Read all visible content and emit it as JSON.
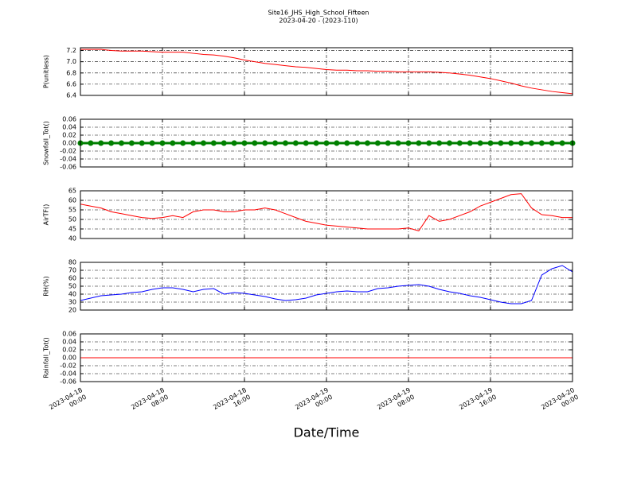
{
  "chart_data": [
    {
      "type": "line",
      "title": "Site16_JHS_High_School_Fifteen",
      "subtitle": "2023-04-20 - (2023-110)",
      "ylabel": "P(unitless)",
      "x": [
        "2023-04-18 00:00",
        "2023-04-18 01:00",
        "2023-04-18 02:00",
        "2023-04-18 03:00",
        "2023-04-18 04:00",
        "2023-04-18 05:00",
        "2023-04-18 06:00",
        "2023-04-18 07:00",
        "2023-04-18 08:00",
        "2023-04-18 09:00",
        "2023-04-18 10:00",
        "2023-04-18 11:00",
        "2023-04-18 12:00",
        "2023-04-18 13:00",
        "2023-04-18 14:00",
        "2023-04-18 15:00",
        "2023-04-18 16:00",
        "2023-04-18 17:00",
        "2023-04-18 18:00",
        "2023-04-18 19:00",
        "2023-04-18 20:00",
        "2023-04-18 21:00",
        "2023-04-18 22:00",
        "2023-04-18 23:00",
        "2023-04-19 00:00",
        "2023-04-19 01:00",
        "2023-04-19 02:00",
        "2023-04-19 03:00",
        "2023-04-19 04:00",
        "2023-04-19 05:00",
        "2023-04-19 06:00",
        "2023-04-19 07:00",
        "2023-04-19 08:00",
        "2023-04-19 09:00",
        "2023-04-19 10:00",
        "2023-04-19 11:00",
        "2023-04-19 12:00",
        "2023-04-19 13:00",
        "2023-04-19 14:00",
        "2023-04-19 15:00",
        "2023-04-19 16:00",
        "2023-04-19 17:00",
        "2023-04-19 18:00",
        "2023-04-19 19:00",
        "2023-04-19 20:00",
        "2023-04-19 21:00",
        "2023-04-19 22:00",
        "2023-04-19 23:00",
        "2023-04-20 00:00"
      ],
      "series": [
        {
          "color": "#ff0000",
          "values": [
            7.22,
            7.22,
            7.22,
            7.2,
            7.19,
            7.19,
            7.19,
            7.18,
            7.17,
            7.17,
            7.17,
            7.15,
            7.13,
            7.12,
            7.1,
            7.07,
            7.03,
            7.0,
            6.97,
            6.95,
            6.93,
            6.91,
            6.9,
            6.88,
            6.86,
            6.85,
            6.85,
            6.84,
            6.84,
            6.83,
            6.83,
            6.82,
            6.82,
            6.82,
            6.82,
            6.81,
            6.8,
            6.78,
            6.76,
            6.73,
            6.7,
            6.66,
            6.62,
            6.57,
            6.53,
            6.5,
            6.47,
            6.45,
            6.43
          ]
        }
      ],
      "xlim": [
        "2023-04-18 00:00",
        "2023-04-20 00:00"
      ],
      "xticks": [
        "2023-04-18 00:00",
        "2023-04-18 08:00",
        "2023-04-18 16:00",
        "2023-04-19 00:00",
        "2023-04-19 08:00",
        "2023-04-19 16:00",
        "2023-04-20 00:00"
      ],
      "ylim": [
        6.4,
        7.25
      ],
      "yticks": [
        {
          "value": 6.4,
          "label": "6.4"
        },
        6.6,
        6.8,
        {
          "value": 7,
          "label": "7.0"
        },
        7.2
      ],
      "grid": true
    },
    {
      "type": "line",
      "ylabel": "Snowfall_Tot()",
      "x": [
        "2023-04-18 00:00",
        "2023-04-18 01:00",
        "2023-04-18 02:00",
        "2023-04-18 03:00",
        "2023-04-18 04:00",
        "2023-04-18 05:00",
        "2023-04-18 06:00",
        "2023-04-18 07:00",
        "2023-04-18 08:00",
        "2023-04-18 09:00",
        "2023-04-18 10:00",
        "2023-04-18 11:00",
        "2023-04-18 12:00",
        "2023-04-18 13:00",
        "2023-04-18 14:00",
        "2023-04-18 15:00",
        "2023-04-18 16:00",
        "2023-04-18 17:00",
        "2023-04-18 18:00",
        "2023-04-18 19:00",
        "2023-04-18 20:00",
        "2023-04-18 21:00",
        "2023-04-18 22:00",
        "2023-04-18 23:00",
        "2023-04-19 00:00",
        "2023-04-19 01:00",
        "2023-04-19 02:00",
        "2023-04-19 03:00",
        "2023-04-19 04:00",
        "2023-04-19 05:00",
        "2023-04-19 06:00",
        "2023-04-19 07:00",
        "2023-04-19 08:00",
        "2023-04-19 09:00",
        "2023-04-19 10:00",
        "2023-04-19 11:00",
        "2023-04-19 12:00",
        "2023-04-19 13:00",
        "2023-04-19 14:00",
        "2023-04-19 15:00",
        "2023-04-19 16:00",
        "2023-04-19 17:00",
        "2023-04-19 18:00",
        "2023-04-19 19:00",
        "2023-04-19 20:00",
        "2023-04-19 21:00",
        "2023-04-19 22:00",
        "2023-04-19 23:00",
        "2023-04-20 00:00"
      ],
      "series": [
        {
          "color": "#008000",
          "marker": true,
          "values": [
            0,
            0,
            0,
            0,
            0,
            0,
            0,
            0,
            0,
            0,
            0,
            0,
            0,
            0,
            0,
            0,
            0,
            0,
            0,
            0,
            0,
            0,
            0,
            0,
            0,
            0,
            0,
            0,
            0,
            0,
            0,
            0,
            0,
            0,
            0,
            0,
            0,
            0,
            0,
            0,
            0,
            0,
            0,
            0,
            0,
            0,
            0,
            0,
            0
          ]
        }
      ],
      "xlim": [
        "2023-04-18 00:00",
        "2023-04-20 00:00"
      ],
      "xticks": [
        "2023-04-18 00:00",
        "2023-04-18 08:00",
        "2023-04-18 16:00",
        "2023-04-19 00:00",
        "2023-04-19 08:00",
        "2023-04-19 16:00",
        "2023-04-20 00:00"
      ],
      "ylim": [
        -0.06,
        0.06
      ],
      "yticks": [
        -0.06,
        -0.04,
        -0.02,
        {
          "value": 0,
          "label": "0.00"
        },
        0.02,
        0.04,
        0.06
      ],
      "grid": true
    },
    {
      "type": "line",
      "ylabel": "AirTF()",
      "x": [
        "2023-04-18 00:00",
        "2023-04-18 01:00",
        "2023-04-18 02:00",
        "2023-04-18 03:00",
        "2023-04-18 04:00",
        "2023-04-18 05:00",
        "2023-04-18 06:00",
        "2023-04-18 07:00",
        "2023-04-18 08:00",
        "2023-04-18 09:00",
        "2023-04-18 10:00",
        "2023-04-18 11:00",
        "2023-04-18 12:00",
        "2023-04-18 13:00",
        "2023-04-18 14:00",
        "2023-04-18 15:00",
        "2023-04-18 16:00",
        "2023-04-18 17:00",
        "2023-04-18 18:00",
        "2023-04-18 19:00",
        "2023-04-18 20:00",
        "2023-04-18 21:00",
        "2023-04-18 22:00",
        "2023-04-18 23:00",
        "2023-04-19 00:00",
        "2023-04-19 01:00",
        "2023-04-19 02:00",
        "2023-04-19 03:00",
        "2023-04-19 04:00",
        "2023-04-19 05:00",
        "2023-04-19 06:00",
        "2023-04-19 07:00",
        "2023-04-19 08:00",
        "2023-04-19 09:00",
        "2023-04-19 10:00",
        "2023-04-19 11:00",
        "2023-04-19 12:00",
        "2023-04-19 13:00",
        "2023-04-19 14:00",
        "2023-04-19 15:00",
        "2023-04-19 16:00",
        "2023-04-19 17:00",
        "2023-04-19 18:00",
        "2023-04-19 19:00",
        "2023-04-19 20:00",
        "2023-04-19 21:00",
        "2023-04-19 22:00",
        "2023-04-19 23:00",
        "2023-04-20 00:00"
      ],
      "series": [
        {
          "color": "#ff0000",
          "values": [
            58,
            57,
            56,
            54,
            53,
            52,
            51,
            50.5,
            51,
            52,
            51,
            54,
            55,
            55,
            54,
            54,
            55,
            55,
            56,
            55,
            53,
            51,
            49,
            48,
            47,
            46.5,
            46,
            45.5,
            45,
            45,
            45,
            45,
            45.5,
            44,
            52,
            49,
            50,
            52,
            54,
            57,
            59,
            61,
            63,
            63.5,
            56,
            52.5,
            52,
            51,
            51
          ]
        }
      ],
      "xlim": [
        "2023-04-18 00:00",
        "2023-04-20 00:00"
      ],
      "xticks": [
        "2023-04-18 00:00",
        "2023-04-18 08:00",
        "2023-04-18 16:00",
        "2023-04-19 00:00",
        "2023-04-19 08:00",
        "2023-04-19 16:00",
        "2023-04-20 00:00"
      ],
      "ylim": [
        40,
        65
      ],
      "yticks": [
        40,
        45,
        50,
        55,
        60,
        65
      ],
      "grid": true
    },
    {
      "type": "line",
      "ylabel": "RH(%)",
      "x": [
        "2023-04-18 00:00",
        "2023-04-18 01:00",
        "2023-04-18 02:00",
        "2023-04-18 03:00",
        "2023-04-18 04:00",
        "2023-04-18 05:00",
        "2023-04-18 06:00",
        "2023-04-18 07:00",
        "2023-04-18 08:00",
        "2023-04-18 09:00",
        "2023-04-18 10:00",
        "2023-04-18 11:00",
        "2023-04-18 12:00",
        "2023-04-18 13:00",
        "2023-04-18 14:00",
        "2023-04-18 15:00",
        "2023-04-18 16:00",
        "2023-04-18 17:00",
        "2023-04-18 18:00",
        "2023-04-18 19:00",
        "2023-04-18 20:00",
        "2023-04-18 21:00",
        "2023-04-18 22:00",
        "2023-04-18 23:00",
        "2023-04-19 00:00",
        "2023-04-19 01:00",
        "2023-04-19 02:00",
        "2023-04-19 03:00",
        "2023-04-19 04:00",
        "2023-04-19 05:00",
        "2023-04-19 06:00",
        "2023-04-19 07:00",
        "2023-04-19 08:00",
        "2023-04-19 09:00",
        "2023-04-19 10:00",
        "2023-04-19 11:00",
        "2023-04-19 12:00",
        "2023-04-19 13:00",
        "2023-04-19 14:00",
        "2023-04-19 15:00",
        "2023-04-19 16:00",
        "2023-04-19 17:00",
        "2023-04-19 18:00",
        "2023-04-19 19:00",
        "2023-04-19 20:00",
        "2023-04-19 21:00",
        "2023-04-19 22:00",
        "2023-04-19 23:00",
        "2023-04-20 00:00"
      ],
      "series": [
        {
          "color": "#0000ff",
          "values": [
            32,
            35,
            38,
            39,
            40,
            42,
            43,
            46,
            48,
            48,
            46,
            43,
            46,
            47,
            40,
            42,
            41,
            39,
            37,
            34,
            32,
            33,
            35,
            39,
            41,
            43,
            44,
            43,
            43,
            47,
            48,
            50,
            51,
            52,
            50,
            46,
            43,
            41,
            38,
            36,
            33,
            30,
            28,
            28,
            32,
            64,
            72,
            76,
            68
          ]
        }
      ],
      "xlim": [
        "2023-04-18 00:00",
        "2023-04-20 00:00"
      ],
      "xticks": [
        "2023-04-18 00:00",
        "2023-04-18 08:00",
        "2023-04-18 16:00",
        "2023-04-19 00:00",
        "2023-04-19 08:00",
        "2023-04-19 16:00",
        "2023-04-20 00:00"
      ],
      "ylim": [
        20,
        80
      ],
      "yticks": [
        20,
        30,
        40,
        50,
        60,
        70,
        80
      ],
      "grid": true
    },
    {
      "type": "line",
      "ylabel": "Rainfall_Tot()",
      "xlabel": "Date/Time",
      "x": [
        "2023-04-18 00:00",
        "2023-04-18 01:00",
        "2023-04-18 02:00",
        "2023-04-18 03:00",
        "2023-04-18 04:00",
        "2023-04-18 05:00",
        "2023-04-18 06:00",
        "2023-04-18 07:00",
        "2023-04-18 08:00",
        "2023-04-18 09:00",
        "2023-04-18 10:00",
        "2023-04-18 11:00",
        "2023-04-18 12:00",
        "2023-04-18 13:00",
        "2023-04-18 14:00",
        "2023-04-18 15:00",
        "2023-04-18 16:00",
        "2023-04-18 17:00",
        "2023-04-18 18:00",
        "2023-04-18 19:00",
        "2023-04-18 20:00",
        "2023-04-18 21:00",
        "2023-04-18 22:00",
        "2023-04-18 23:00",
        "2023-04-19 00:00",
        "2023-04-19 01:00",
        "2023-04-19 02:00",
        "2023-04-19 03:00",
        "2023-04-19 04:00",
        "2023-04-19 05:00",
        "2023-04-19 06:00",
        "2023-04-19 07:00",
        "2023-04-19 08:00",
        "2023-04-19 09:00",
        "2023-04-19 10:00",
        "2023-04-19 11:00",
        "2023-04-19 12:00",
        "2023-04-19 13:00",
        "2023-04-19 14:00",
        "2023-04-19 15:00",
        "2023-04-19 16:00",
        "2023-04-19 17:00",
        "2023-04-19 18:00",
        "2023-04-19 19:00",
        "2023-04-19 20:00",
        "2023-04-19 21:00",
        "2023-04-19 22:00",
        "2023-04-19 23:00",
        "2023-04-20 00:00"
      ],
      "series": [
        {
          "color": "#ff0000",
          "values": [
            0,
            0,
            0,
            0,
            0,
            0,
            0,
            0,
            0,
            0,
            0,
            0,
            0,
            0,
            0,
            0,
            0,
            0,
            0,
            0,
            0,
            0,
            0,
            0,
            0,
            0,
            0,
            0,
            0,
            0,
            0,
            0,
            0,
            0,
            0,
            0,
            0,
            0,
            0,
            0,
            0,
            0,
            0,
            0,
            0,
            0,
            0,
            0,
            0
          ]
        }
      ],
      "xlim": [
        "2023-04-18 00:00",
        "2023-04-20 00:00"
      ],
      "xticks": [
        {
          "value": "2023-04-18 00:00",
          "label": "2023-04-18\n00:00"
        },
        {
          "value": "2023-04-18 08:00",
          "label": "2023-04-18\n08:00"
        },
        {
          "value": "2023-04-18 16:00",
          "label": "2023-04-18\n16:00"
        },
        {
          "value": "2023-04-19 00:00",
          "label": "2023-04-19\n00:00"
        },
        {
          "value": "2023-04-19 08:00",
          "label": "2023-04-19\n08:00"
        },
        {
          "value": "2023-04-19 16:00",
          "label": "2023-04-19\n16:00"
        },
        {
          "value": "2023-04-20 00:00",
          "label": "2023-04-20\n00:00"
        }
      ],
      "ylim": [
        -0.06,
        0.06
      ],
      "yticks": [
        -0.06,
        -0.04,
        -0.02,
        {
          "value": 0,
          "label": "0.00"
        },
        0.02,
        0.04,
        0.06
      ],
      "grid": true
    }
  ]
}
